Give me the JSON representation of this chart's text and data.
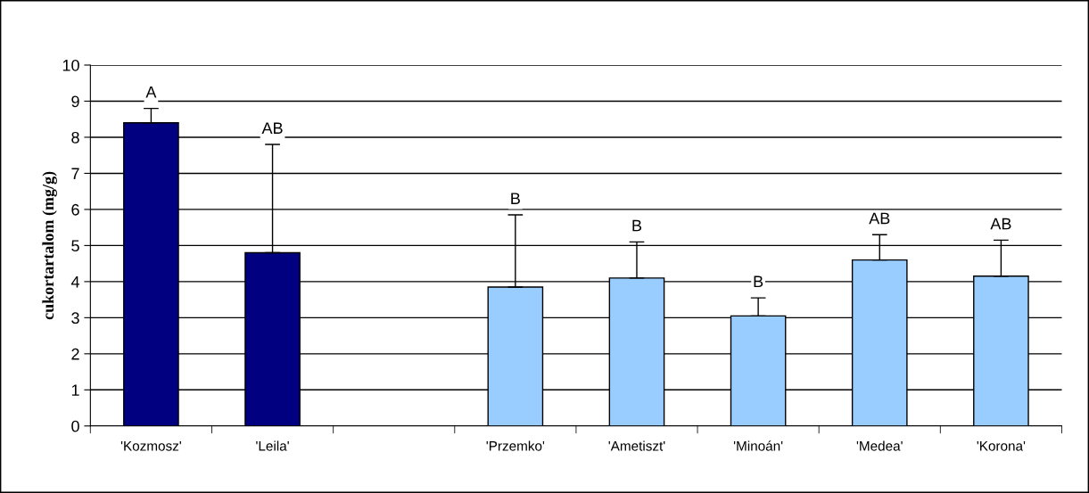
{
  "chart_data": {
    "type": "bar",
    "ylabel": "cukortartalom (mg/g)",
    "categories": [
      "'Kozmosz'",
      "'Leila'",
      null,
      "'Przemko'",
      "'Ametiszt'",
      "'Minoán'",
      "'Medea'",
      "'Korona'"
    ],
    "values": [
      8.4,
      4.8,
      null,
      3.85,
      4.1,
      3.05,
      4.6,
      4.15
    ],
    "colors": [
      "#000080",
      "#000080",
      null,
      "#99ccff",
      "#99ccff",
      "#99ccff",
      "#99ccff",
      "#99ccff"
    ],
    "errors": [
      [
        8.4,
        8.8
      ],
      [
        4.8,
        7.8
      ],
      null,
      [
        3.85,
        5.85
      ],
      [
        4.1,
        5.1
      ],
      [
        3.05,
        3.55
      ],
      [
        4.6,
        5.3
      ],
      [
        4.15,
        5.15
      ]
    ],
    "annotations": [
      {
        "text": "A",
        "x": "'Kozmosz'",
        "y": 8.8
      },
      {
        "text": "AB",
        "x": "'Leila'",
        "y": 7.8
      },
      {
        "text": "B",
        "x": "'Przemko'",
        "y": 5.85
      },
      {
        "text": "B",
        "x": "'Ametiszt'",
        "y": 5.1
      },
      {
        "text": "B",
        "x": "'Minoán'",
        "y": 3.55
      },
      {
        "text": "AB",
        "x": "'Medea'",
        "y": 5.3
      },
      {
        "text": "AB",
        "x": "'Korona'",
        "y": 5.15
      }
    ],
    "ylim": [
      0,
      10
    ],
    "yticks": [
      0,
      1,
      2,
      3,
      4,
      5,
      6,
      7,
      8,
      9,
      10
    ],
    "grid": "y",
    "legend": false
  }
}
